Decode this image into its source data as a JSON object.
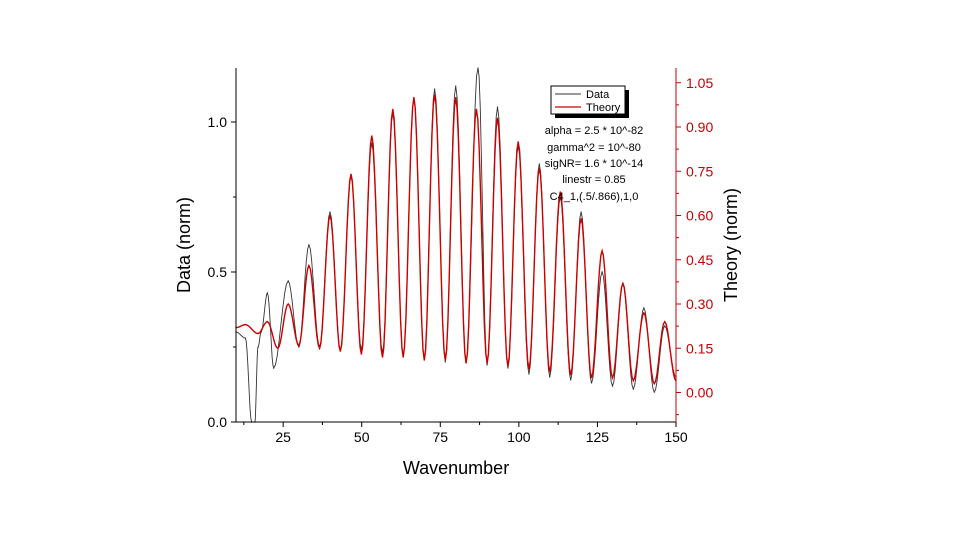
{
  "chart_data": {
    "type": "line",
    "xlabel": "Wavenumber",
    "ylabel_left": "Data (norm)",
    "ylabel_right": "Theory (norm)",
    "xlim": [
      10,
      150
    ],
    "ylim_left": [
      0.0,
      1.18
    ],
    "ylim_right": [
      -0.1,
      1.1
    ],
    "x_ticks": [
      25,
      50,
      75,
      100,
      125,
      150
    ],
    "x_tick_labels": [
      "25",
      "50",
      "75",
      "100",
      "125",
      "150"
    ],
    "y_left_ticks": [
      0.0,
      0.5,
      1.0
    ],
    "y_left_tick_labels": [
      "0.0",
      "0.5",
      "1.0"
    ],
    "y_right_ticks": [
      0.0,
      0.15,
      0.3,
      0.45,
      0.6,
      0.75,
      0.9,
      1.05
    ],
    "y_right_tick_labels": [
      "0.00",
      "0.15",
      "0.30",
      "0.45",
      "0.60",
      "0.75",
      "0.90",
      "1.05"
    ],
    "legend": {
      "position": "top-right",
      "entries": [
        {
          "label": "Data",
          "color": "#333333"
        },
        {
          "label": "Theory",
          "color": "#cc0000"
        }
      ]
    },
    "annotations": [
      "alpha = 2.5 * 10^-82",
      "gamma^2 = 10^-80",
      "sigNR= 1.6 * 10^-14",
      "linestr = 0.85",
      "C4_1,(.5/.866),1,0"
    ],
    "series": [
      {
        "name": "Theory",
        "axis": "right",
        "color": "#cc0000",
        "peak_spacing": 6.66,
        "first_peak": 20.0,
        "x": [
          10,
          13,
          17,
          20,
          23.3,
          26.6,
          30,
          33.2,
          36.6,
          39.9,
          43.2,
          46.6,
          49.9,
          53.2,
          56.6,
          59.9,
          63.2,
          66.6,
          69.9,
          73.2,
          76.6,
          79.9,
          83.2,
          86.5,
          89.9,
          93.2,
          96.5,
          99.8,
          103.2,
          106.5,
          109.8,
          113.2,
          116.5,
          119.8,
          123.1,
          126.5,
          129.8,
          133.1,
          136.4,
          139.8,
          143.1,
          146.4,
          150
        ],
        "y": [
          0.22,
          0.23,
          0.2,
          0.24,
          0.15,
          0.3,
          0.16,
          0.43,
          0.15,
          0.6,
          0.14,
          0.74,
          0.13,
          0.87,
          0.12,
          0.96,
          0.12,
          1.0,
          0.11,
          1.01,
          0.11,
          1.0,
          0.1,
          0.96,
          0.1,
          0.93,
          0.09,
          0.85,
          0.08,
          0.76,
          0.07,
          0.68,
          0.06,
          0.59,
          0.05,
          0.48,
          0.05,
          0.37,
          0.04,
          0.27,
          0.03,
          0.24,
          0.04
        ]
      },
      {
        "name": "Data",
        "axis": "left",
        "color": "#333333",
        "x": [
          10,
          13,
          15,
          16,
          17,
          18,
          20,
          22,
          26.6,
          30,
          33.2,
          36.6,
          39.9,
          43.2,
          46.6,
          49.9,
          53.2,
          56.6,
          59.9,
          63.2,
          66.6,
          69.9,
          73.2,
          76.6,
          79.9,
          83.2,
          87.0,
          89.9,
          93.2,
          96.5,
          99.8,
          103.2,
          106.5,
          109.8,
          113.2,
          116.5,
          119.8,
          123.1,
          126.5,
          129.8,
          133.1,
          136.4,
          139.8,
          143.1,
          146.4,
          150
        ],
        "y": [
          0.3,
          0.28,
          0.0,
          0.0,
          0.25,
          0.3,
          0.43,
          0.18,
          0.47,
          0.25,
          0.59,
          0.25,
          0.7,
          0.24,
          0.82,
          0.24,
          0.93,
          0.23,
          1.03,
          0.22,
          1.08,
          0.21,
          1.11,
          0.2,
          1.12,
          0.2,
          1.19,
          0.19,
          1.05,
          0.18,
          0.92,
          0.16,
          0.86,
          0.15,
          0.75,
          0.14,
          0.7,
          0.13,
          0.5,
          0.12,
          0.46,
          0.11,
          0.38,
          0.1,
          0.32,
          0.15
        ]
      }
    ]
  }
}
